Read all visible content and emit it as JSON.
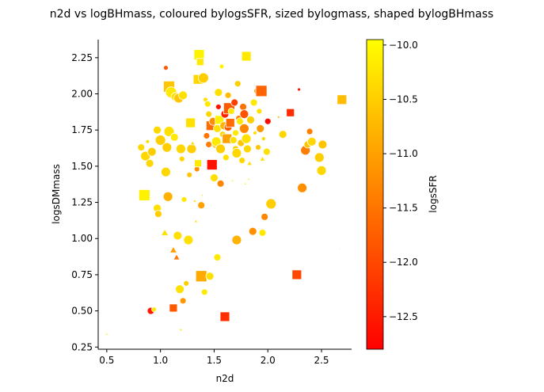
{
  "chart_data": {
    "type": "scatter",
    "title": "n2d vs logBHmass, coloured bylogsSFR, sized bylogmass, shaped bylogBHmass",
    "xlabel": "n2d",
    "ylabel": "logsDMmass",
    "xlim": [
      0.42,
      2.78
    ],
    "ylim": [
      0.235,
      2.375
    ],
    "xticks": [
      0.5,
      1.0,
      1.5,
      2.0,
      2.5
    ],
    "yticks": [
      0.25,
      0.5,
      0.75,
      1.0,
      1.25,
      1.5,
      1.75,
      2.0,
      2.25
    ],
    "grid": false,
    "colorbar": {
      "label": "logsSFR",
      "range": [
        -12.8,
        -9.95
      ],
      "ticks": [
        -10.0,
        -10.5,
        -11.0,
        -11.5,
        -12.0,
        -12.5
      ],
      "colormap": "autumn",
      "low_color": "#ff0000",
      "high_color": "#ffff00"
    },
    "marker_shapes": [
      "circle",
      "square",
      "triangle"
    ],
    "points": [
      {
        "x": 0.5,
        "y": 0.34,
        "m": "triangle",
        "s": 3,
        "c": -10.2
      },
      {
        "x": 0.82,
        "y": 1.63,
        "m": "circle",
        "s": 9,
        "c": -10.4
      },
      {
        "x": 0.85,
        "y": 1.3,
        "m": "square",
        "s": 14,
        "c": -10.1
      },
      {
        "x": 0.86,
        "y": 1.57,
        "m": "circle",
        "s": 12,
        "c": -10.4
      },
      {
        "x": 0.88,
        "y": 1.67,
        "m": "circle",
        "s": 5,
        "c": -10.3
      },
      {
        "x": 0.9,
        "y": 1.52,
        "m": "circle",
        "s": 10,
        "c": -10.4
      },
      {
        "x": 0.91,
        "y": 0.5,
        "m": "circle",
        "s": 9,
        "c": -12.5
      },
      {
        "x": 0.92,
        "y": 1.6,
        "m": "circle",
        "s": 11,
        "c": -10.5
      },
      {
        "x": 0.94,
        "y": 0.51,
        "m": "circle",
        "s": 6,
        "c": -10.2
      },
      {
        "x": 0.97,
        "y": 1.75,
        "m": "circle",
        "s": 10,
        "c": -10.4
      },
      {
        "x": 0.97,
        "y": 1.21,
        "m": "circle",
        "s": 10,
        "c": -10.3
      },
      {
        "x": 0.98,
        "y": 1.17,
        "m": "circle",
        "s": 9,
        "c": -10.5
      },
      {
        "x": 1.0,
        "y": 1.68,
        "m": "circle",
        "s": 13,
        "c": -10.5
      },
      {
        "x": 1.04,
        "y": 1.04,
        "m": "triangle",
        "s": 8,
        "c": -10.3
      },
      {
        "x": 1.05,
        "y": 2.18,
        "m": "circle",
        "s": 6,
        "c": -11.8
      },
      {
        "x": 1.05,
        "y": 1.46,
        "m": "circle",
        "s": 12,
        "c": -10.4
      },
      {
        "x": 1.06,
        "y": 1.62,
        "m": "circle",
        "s": 10,
        "c": -10.2
      },
      {
        "x": 1.06,
        "y": 1.63,
        "m": "circle",
        "s": 12,
        "c": -10.5
      },
      {
        "x": 1.07,
        "y": 1.29,
        "m": "circle",
        "s": 12,
        "c": -10.8
      },
      {
        "x": 1.08,
        "y": 2.05,
        "m": "square",
        "s": 14,
        "c": -10.6
      },
      {
        "x": 1.08,
        "y": 1.74,
        "m": "circle",
        "s": 13,
        "c": -10.3
      },
      {
        "x": 1.1,
        "y": 2.01,
        "m": "circle",
        "s": 14,
        "c": -10.2
      },
      {
        "x": 1.12,
        "y": 0.92,
        "m": "triangle",
        "s": 8,
        "c": -11.0
      },
      {
        "x": 1.12,
        "y": 0.52,
        "m": "square",
        "s": 10,
        "c": -11.8
      },
      {
        "x": 1.13,
        "y": 1.7,
        "m": "circle",
        "s": 10,
        "c": -10.2
      },
      {
        "x": 1.14,
        "y": 1.98,
        "m": "circle",
        "s": 11,
        "c": -10.3
      },
      {
        "x": 1.15,
        "y": 0.87,
        "m": "triangle",
        "s": 7,
        "c": -11.5
      },
      {
        "x": 1.16,
        "y": 1.02,
        "m": "circle",
        "s": 11,
        "c": -10.3
      },
      {
        "x": 1.17,
        "y": 1.97,
        "m": "circle",
        "s": 12,
        "c": -10.6
      },
      {
        "x": 1.18,
        "y": 0.65,
        "m": "circle",
        "s": 11,
        "c": -10.3
      },
      {
        "x": 1.19,
        "y": 0.37,
        "m": "circle",
        "s": 3,
        "c": -10.2
      },
      {
        "x": 1.19,
        "y": 1.62,
        "m": "circle",
        "s": 12,
        "c": -10.4
      },
      {
        "x": 1.2,
        "y": 1.55,
        "m": "circle",
        "s": 7,
        "c": -10.4
      },
      {
        "x": 1.21,
        "y": 1.99,
        "m": "circle",
        "s": 11,
        "c": -10.3
      },
      {
        "x": 1.21,
        "y": 0.57,
        "m": "circle",
        "s": 8,
        "c": -11.1
      },
      {
        "x": 1.22,
        "y": 1.27,
        "m": "circle",
        "s": 7,
        "c": -10.2
      },
      {
        "x": 1.24,
        "y": 0.69,
        "m": "circle",
        "s": 7,
        "c": -10.5
      },
      {
        "x": 1.26,
        "y": 0.99,
        "m": "circle",
        "s": 12,
        "c": -10.3
      },
      {
        "x": 1.27,
        "y": 1.44,
        "m": "circle",
        "s": 7,
        "c": -10.6
      },
      {
        "x": 1.28,
        "y": 1.8,
        "m": "square",
        "s": 12,
        "c": -10.3
      },
      {
        "x": 1.29,
        "y": 1.62,
        "m": "circle",
        "s": 12,
        "c": -10.5
      },
      {
        "x": 1.3,
        "y": 1.66,
        "m": "triangle",
        "s": 5,
        "c": -10.4
      },
      {
        "x": 1.32,
        "y": 1.26,
        "m": "triangle",
        "s": 4,
        "c": -10.3
      },
      {
        "x": 1.33,
        "y": 1.12,
        "m": "triangle",
        "s": 4,
        "c": -10.3
      },
      {
        "x": 1.34,
        "y": 1.48,
        "m": "circle",
        "s": 7,
        "c": -11.2
      },
      {
        "x": 1.35,
        "y": 1.52,
        "m": "square",
        "s": 9,
        "c": -10.2
      },
      {
        "x": 1.35,
        "y": 2.1,
        "m": "square",
        "s": 12,
        "c": -10.4
      },
      {
        "x": 1.36,
        "y": 2.27,
        "m": "square",
        "s": 13,
        "c": -10.1
      },
      {
        "x": 1.37,
        "y": 2.22,
        "m": "square",
        "s": 9,
        "c": -10.2
      },
      {
        "x": 1.38,
        "y": 1.23,
        "m": "circle",
        "s": 9,
        "c": -11.0
      },
      {
        "x": 1.38,
        "y": 0.74,
        "m": "square",
        "s": 14,
        "c": -10.9
      },
      {
        "x": 1.39,
        "y": 1.3,
        "m": "triangle",
        "s": 3,
        "c": -10.3
      },
      {
        "x": 1.4,
        "y": 2.11,
        "m": "circle",
        "s": 13,
        "c": -10.5
      },
      {
        "x": 1.41,
        "y": 0.63,
        "m": "circle",
        "s": 8,
        "c": -10.2
      },
      {
        "x": 1.42,
        "y": 1.96,
        "m": "circle",
        "s": 6,
        "c": -10.3
      },
      {
        "x": 1.43,
        "y": 1.71,
        "m": "circle",
        "s": 8,
        "c": -11.5
      },
      {
        "x": 1.44,
        "y": 1.93,
        "m": "circle",
        "s": 8,
        "c": -10.2
      },
      {
        "x": 1.45,
        "y": 1.86,
        "m": "circle",
        "s": 8,
        "c": -10.4
      },
      {
        "x": 1.45,
        "y": 1.65,
        "m": "circle",
        "s": 8,
        "c": -11.4
      },
      {
        "x": 1.46,
        "y": 0.74,
        "m": "circle",
        "s": 10,
        "c": -10.3
      },
      {
        "x": 1.47,
        "y": 1.78,
        "m": "square",
        "s": 12,
        "c": -11.6
      },
      {
        "x": 1.48,
        "y": 1.51,
        "m": "square",
        "s": 13,
        "c": -12.6
      },
      {
        "x": 1.49,
        "y": 1.81,
        "m": "circle",
        "s": 10,
        "c": -11.2
      },
      {
        "x": 1.5,
        "y": 1.42,
        "m": "circle",
        "s": 10,
        "c": -10.3
      },
      {
        "x": 1.51,
        "y": 1.65,
        "m": "circle",
        "s": 9,
        "c": -10.6
      },
      {
        "x": 1.52,
        "y": 1.67,
        "m": "circle",
        "s": 12,
        "c": -10.2
      },
      {
        "x": 1.53,
        "y": 1.76,
        "m": "circle",
        "s": 10,
        "c": -10.3
      },
      {
        "x": 1.53,
        "y": 0.87,
        "m": "circle",
        "s": 9,
        "c": -10.2
      },
      {
        "x": 1.54,
        "y": 1.91,
        "m": "circle",
        "s": 7,
        "c": -12.6
      },
      {
        "x": 1.54,
        "y": 2.01,
        "m": "circle",
        "s": 10,
        "c": -10.3
      },
      {
        "x": 1.55,
        "y": 1.82,
        "m": "square",
        "s": 11,
        "c": -10.1
      },
      {
        "x": 1.56,
        "y": 1.62,
        "m": "circle",
        "s": 12,
        "c": -10.5
      },
      {
        "x": 1.56,
        "y": 1.38,
        "m": "circle",
        "s": 9,
        "c": -11.3
      },
      {
        "x": 1.57,
        "y": 2.19,
        "m": "circle",
        "s": 6,
        "c": -10.1
      },
      {
        "x": 1.58,
        "y": 1.72,
        "m": "circle",
        "s": 8,
        "c": -10.4
      },
      {
        "x": 1.59,
        "y": 1.78,
        "m": "circle",
        "s": 10,
        "c": -10.8
      },
      {
        "x": 1.6,
        "y": 1.86,
        "m": "circle",
        "s": 10,
        "c": -12.4
      },
      {
        "x": 1.6,
        "y": 0.46,
        "m": "square",
        "s": 12,
        "c": -12.3
      },
      {
        "x": 1.61,
        "y": 1.56,
        "m": "circle",
        "s": 8,
        "c": -10.3
      },
      {
        "x": 1.62,
        "y": 1.69,
        "m": "square",
        "s": 12,
        "c": -11.0
      },
      {
        "x": 1.63,
        "y": 1.99,
        "m": "circle",
        "s": 8,
        "c": -10.7
      },
      {
        "x": 1.63,
        "y": 1.77,
        "m": "circle",
        "s": 10,
        "c": -11.8
      },
      {
        "x": 1.64,
        "y": 1.9,
        "m": "square",
        "s": 14,
        "c": -11.8
      },
      {
        "x": 1.65,
        "y": 1.8,
        "m": "square",
        "s": 11,
        "c": -11.6
      },
      {
        "x": 1.66,
        "y": 1.88,
        "m": "circle",
        "s": 8,
        "c": -10.2
      },
      {
        "x": 1.67,
        "y": 1.4,
        "m": "triangle",
        "s": 3,
        "c": -10.2
      },
      {
        "x": 1.68,
        "y": 1.68,
        "m": "circle",
        "s": 9,
        "c": -10.3
      },
      {
        "x": 1.69,
        "y": 1.94,
        "m": "circle",
        "s": 9,
        "c": -12.1
      },
      {
        "x": 1.7,
        "y": 1.62,
        "m": "circle",
        "s": 8,
        "c": -10.5
      },
      {
        "x": 1.7,
        "y": 1.73,
        "m": "circle",
        "s": 8,
        "c": -10.2
      },
      {
        "x": 1.71,
        "y": 1.59,
        "m": "circle",
        "s": 12,
        "c": -10.4
      },
      {
        "x": 1.71,
        "y": 0.99,
        "m": "circle",
        "s": 12,
        "c": -10.8
      },
      {
        "x": 1.72,
        "y": 2.07,
        "m": "circle",
        "s": 8,
        "c": -10.5
      },
      {
        "x": 1.73,
        "y": 1.83,
        "m": "circle",
        "s": 8,
        "c": -11.4
      },
      {
        "x": 1.74,
        "y": 1.81,
        "m": "circle",
        "s": 9,
        "c": -10.2
      },
      {
        "x": 1.75,
        "y": 1.66,
        "m": "circle",
        "s": 9,
        "c": -10.6
      },
      {
        "x": 1.76,
        "y": 1.54,
        "m": "circle",
        "s": 8,
        "c": -10.4
      },
      {
        "x": 1.77,
        "y": 1.91,
        "m": "circle",
        "s": 9,
        "c": -11.5
      },
      {
        "x": 1.78,
        "y": 1.86,
        "m": "circle",
        "s": 11,
        "c": -11.9
      },
      {
        "x": 1.78,
        "y": 1.76,
        "m": "circle",
        "s": 12,
        "c": -11.3
      },
      {
        "x": 1.79,
        "y": 1.38,
        "m": "triangle",
        "s": 3,
        "c": -10.2
      },
      {
        "x": 1.8,
        "y": 2.26,
        "m": "square",
        "s": 12,
        "c": -10.2
      },
      {
        "x": 1.8,
        "y": 1.69,
        "m": "circle",
        "s": 12,
        "c": -10.3
      },
      {
        "x": 1.81,
        "y": 1.62,
        "m": "circle",
        "s": 10,
        "c": -10.4
      },
      {
        "x": 1.82,
        "y": 1.41,
        "m": "triangle",
        "s": 3,
        "c": -10.2
      },
      {
        "x": 1.83,
        "y": 1.52,
        "m": "triangle",
        "s": 6,
        "c": -10.3
      },
      {
        "x": 1.84,
        "y": 1.82,
        "m": "circle",
        "s": 10,
        "c": -10.5
      },
      {
        "x": 1.86,
        "y": 1.05,
        "m": "circle",
        "s": 10,
        "c": -11.2
      },
      {
        "x": 1.87,
        "y": 1.94,
        "m": "circle",
        "s": 9,
        "c": -10.2
      },
      {
        "x": 1.88,
        "y": 1.73,
        "m": "circle",
        "s": 5,
        "c": -10.3
      },
      {
        "x": 1.9,
        "y": 2.02,
        "m": "circle",
        "s": 8,
        "c": -11.0
      },
      {
        "x": 1.91,
        "y": 1.63,
        "m": "circle",
        "s": 7,
        "c": -10.6
      },
      {
        "x": 1.92,
        "y": 1.88,
        "m": "circle",
        "s": 7,
        "c": -10.3
      },
      {
        "x": 1.93,
        "y": 1.76,
        "m": "circle",
        "s": 10,
        "c": -11.1
      },
      {
        "x": 1.94,
        "y": 2.02,
        "m": "square",
        "s": 14,
        "c": -11.7
      },
      {
        "x": 1.95,
        "y": 1.04,
        "m": "circle",
        "s": 9,
        "c": -10.2
      },
      {
        "x": 1.95,
        "y": 1.55,
        "m": "triangle",
        "s": 6,
        "c": -10.3
      },
      {
        "x": 1.96,
        "y": 1.69,
        "m": "circle",
        "s": 5,
        "c": -10.4
      },
      {
        "x": 1.97,
        "y": 1.15,
        "m": "circle",
        "s": 9,
        "c": -11.3
      },
      {
        "x": 1.99,
        "y": 1.6,
        "m": "circle",
        "s": 9,
        "c": -10.3
      },
      {
        "x": 2.0,
        "y": 1.81,
        "m": "circle",
        "s": 8,
        "c": -12.7
      },
      {
        "x": 2.03,
        "y": 1.24,
        "m": "circle",
        "s": 13,
        "c": -10.5
      },
      {
        "x": 2.1,
        "y": 1.84,
        "m": "circle",
        "s": 3,
        "c": -10.7
      },
      {
        "x": 2.14,
        "y": 1.72,
        "m": "circle",
        "s": 10,
        "c": -10.4
      },
      {
        "x": 2.21,
        "y": 1.87,
        "m": "square",
        "s": 10,
        "c": -12.3
      },
      {
        "x": 2.27,
        "y": 0.75,
        "m": "square",
        "s": 12,
        "c": -12.0
      },
      {
        "x": 2.29,
        "y": 2.03,
        "m": "circle",
        "s": 4,
        "c": -12.5
      },
      {
        "x": 2.32,
        "y": 1.35,
        "m": "circle",
        "s": 12,
        "c": -11.2
      },
      {
        "x": 2.35,
        "y": 1.61,
        "m": "circle",
        "s": 12,
        "c": -11.4
      },
      {
        "x": 2.37,
        "y": 1.65,
        "m": "circle",
        "s": 9,
        "c": -10.6
      },
      {
        "x": 2.39,
        "y": 1.74,
        "m": "circle",
        "s": 8,
        "c": -11.4
      },
      {
        "x": 2.41,
        "y": 1.67,
        "m": "circle",
        "s": 11,
        "c": -10.4
      },
      {
        "x": 2.48,
        "y": 1.56,
        "m": "circle",
        "s": 12,
        "c": -10.5
      },
      {
        "x": 2.5,
        "y": 1.47,
        "m": "circle",
        "s": 12,
        "c": -10.4
      },
      {
        "x": 2.51,
        "y": 1.65,
        "m": "circle",
        "s": 11,
        "c": -10.6
      },
      {
        "x": 2.67,
        "y": 0.93,
        "m": "triangle",
        "s": 2,
        "c": -11.0
      },
      {
        "x": 2.69,
        "y": 1.96,
        "m": "square",
        "s": 12,
        "c": -10.7
      }
    ]
  }
}
